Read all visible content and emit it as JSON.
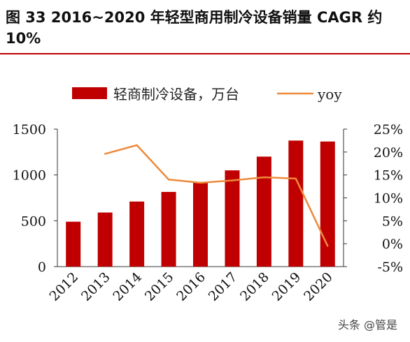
{
  "title": "图 33 2016~2020 年轻型商用制冷设备销量 CAGR 约 10%",
  "watermark": "头条 @管是",
  "colors": {
    "bar": "#c00000",
    "line": "#ed8a3c",
    "rule": "#c00000"
  },
  "chart_data": {
    "type": "bar",
    "categories": [
      "2012",
      "2013",
      "2014",
      "2015",
      "2016",
      "2017",
      "2018",
      "2019",
      "2020"
    ],
    "series": [
      {
        "name": "轻商制冷设备，万台",
        "type": "bar",
        "axis": "left",
        "values": [
          490,
          590,
          710,
          815,
          925,
          1050,
          1200,
          1375,
          1365
        ]
      },
      {
        "name": "yoy",
        "type": "line",
        "axis": "right",
        "values": [
          null,
          19.6,
          21.5,
          14.0,
          13.3,
          13.8,
          14.5,
          14.2,
          -0.5
        ]
      }
    ],
    "ylim": [
      0,
      1500
    ],
    "y_ticks": [
      "0",
      "500",
      "1000",
      "1500"
    ],
    "y2lim": [
      -5,
      25
    ],
    "y2_ticks": [
      "-5%",
      "0%",
      "5%",
      "10%",
      "15%",
      "20%",
      "25%"
    ],
    "legend_position": "top"
  }
}
